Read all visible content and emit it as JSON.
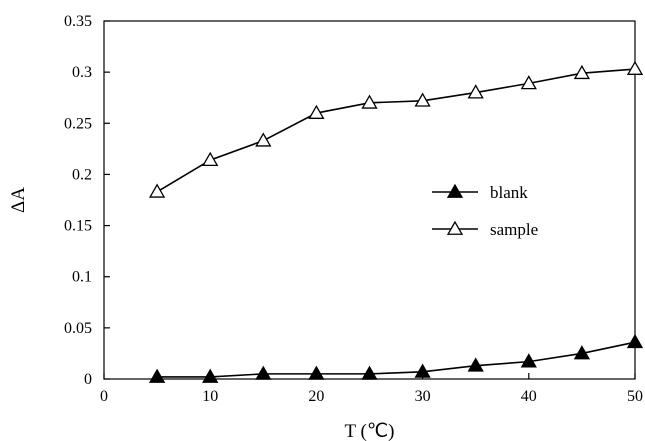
{
  "chart_data": {
    "type": "line",
    "xlabel": "T (℃)",
    "ylabel": "ΔA",
    "xlim": [
      0,
      50
    ],
    "ylim": [
      0,
      0.35
    ],
    "xticks": [
      0,
      10,
      20,
      30,
      40,
      50
    ],
    "yticks": [
      0,
      0.05,
      0.1,
      0.15,
      0.2,
      0.25,
      0.3,
      0.35
    ],
    "xtick_labels": [
      "0",
      "10",
      "20",
      "30",
      "40",
      "50"
    ],
    "ytick_labels": [
      "0",
      "0.05",
      "0.1",
      "0.15",
      "0.2",
      "0.25",
      "0.3",
      "0.35"
    ],
    "grid": false,
    "legend_position": "center-right",
    "x": [
      5,
      10,
      15,
      20,
      25,
      30,
      35,
      40,
      45,
      50
    ],
    "series": [
      {
        "name": "blank",
        "marker": "filled-triangle",
        "color": "#000000",
        "values": [
          0.002,
          0.002,
          0.005,
          0.005,
          0.005,
          0.007,
          0.013,
          0.017,
          0.025,
          0.036
        ]
      },
      {
        "name": "sample",
        "marker": "open-triangle",
        "color": "#000000",
        "values": [
          0.183,
          0.214,
          0.233,
          0.26,
          0.27,
          0.272,
          0.28,
          0.289,
          0.299,
          0.303
        ]
      }
    ]
  }
}
